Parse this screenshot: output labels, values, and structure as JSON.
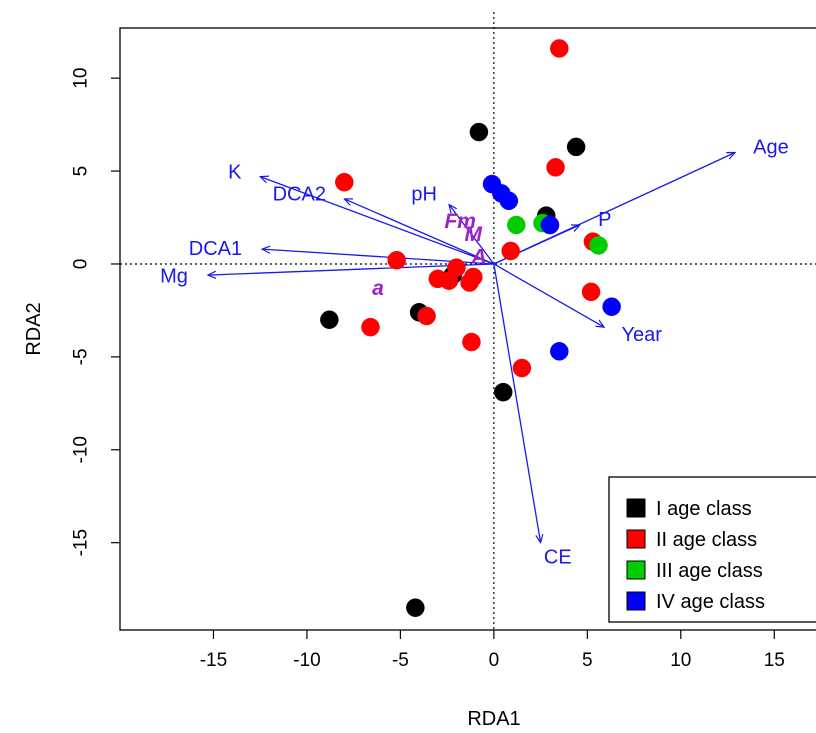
{
  "chart_data": {
    "type": "scatter",
    "xlabel": "RDA1",
    "ylabel": "RDA2",
    "xlim": [
      -20,
      17.5
    ],
    "ylim": [
      -19.7,
      12.7
    ],
    "xticks": [
      -15,
      -10,
      -5,
      0,
      5,
      10,
      15
    ],
    "yticks": [
      10,
      5,
      0,
      -5,
      -10,
      -15
    ],
    "reference_lines": {
      "x": 0,
      "y": 0,
      "style": "dotted"
    },
    "series": [
      {
        "name": "I age class",
        "color": "#000000",
        "points": [
          [
            -0.8,
            7.1
          ],
          [
            4.4,
            6.3
          ],
          [
            2.8,
            2.6
          ],
          [
            -8.8,
            -3.0
          ],
          [
            -4.0,
            -2.6
          ],
          [
            0.5,
            -6.9
          ],
          [
            -4.2,
            -18.5
          ],
          [
            -2.2,
            -0.6
          ]
        ]
      },
      {
        "name": "II age class",
        "color": "#ff0000",
        "points": [
          [
            3.5,
            11.6
          ],
          [
            -8.0,
            4.4
          ],
          [
            3.3,
            5.2
          ],
          [
            3.0,
            2.1
          ],
          [
            5.3,
            1.2
          ],
          [
            0.9,
            0.7
          ],
          [
            -5.2,
            0.2
          ],
          [
            -2.0,
            -0.2
          ],
          [
            -3.0,
            -0.8
          ],
          [
            -2.4,
            -0.9
          ],
          [
            -1.1,
            -0.7
          ],
          [
            -1.3,
            -1.0
          ],
          [
            -6.6,
            -3.4
          ],
          [
            -3.6,
            -2.8
          ],
          [
            -1.2,
            -4.2
          ],
          [
            5.2,
            -1.5
          ],
          [
            1.5,
            -5.6
          ]
        ]
      },
      {
        "name": "III age class",
        "color": "#00cc00",
        "points": [
          [
            1.2,
            2.1
          ],
          [
            2.6,
            2.2
          ],
          [
            5.6,
            1.0
          ]
        ]
      },
      {
        "name": "IV age class",
        "color": "#0000ff",
        "points": [
          [
            -0.1,
            4.3
          ],
          [
            0.4,
            3.8
          ],
          [
            0.8,
            3.4
          ],
          [
            3.0,
            2.1
          ],
          [
            6.3,
            -2.3
          ],
          [
            3.5,
            -4.7
          ]
        ]
      }
    ],
    "arrows": [
      {
        "label": "Age",
        "x": 12.9,
        "y": 6.0,
        "color": "#1a1ae6"
      },
      {
        "label": "K",
        "x": -12.5,
        "y": 4.7,
        "color": "#1a1ae6"
      },
      {
        "label": "DCA2",
        "x": -8.0,
        "y": 3.5,
        "color": "#1a1ae6"
      },
      {
        "label": "pH",
        "x": -2.4,
        "y": 3.2,
        "color": "#1a1ae6"
      },
      {
        "label": "P",
        "x": 4.6,
        "y": 2.1,
        "color": "#1a1ae6"
      },
      {
        "label": "DCA1",
        "x": -12.4,
        "y": 0.8,
        "color": "#1a1ae6"
      },
      {
        "label": "Mg",
        "x": -15.3,
        "y": -0.6,
        "color": "#1a1ae6"
      },
      {
        "label": "Year",
        "x": 5.9,
        "y": -3.4,
        "color": "#1a1ae6"
      },
      {
        "label": "CE",
        "x": 2.5,
        "y": -15.0,
        "color": "#1a1ae6"
      }
    ],
    "species_labels": [
      {
        "label": "Fm",
        "x": -1.8,
        "y": 2.3
      },
      {
        "label": "M",
        "x": -1.1,
        "y": 1.6
      },
      {
        "label": "A",
        "x": -0.8,
        "y": 0.4
      },
      {
        "label": "a",
        "x": -6.2,
        "y": -1.3
      }
    ],
    "legend": {
      "position": "bottom-right",
      "entries": [
        {
          "label": "I age class",
          "color": "#000000"
        },
        {
          "label": "II age class",
          "color": "#ff0000"
        },
        {
          "label": "III age class",
          "color": "#00cc00"
        },
        {
          "label": "IV age class",
          "color": "#0000ff"
        }
      ]
    }
  }
}
